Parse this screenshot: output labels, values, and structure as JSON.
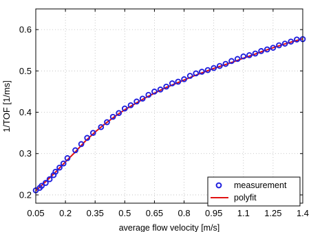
{
  "chart_data": {
    "type": "scatter",
    "title": "",
    "xlabel": "average flow velocity [m/s]",
    "ylabel": "1/TOF [1/ms]",
    "xlim": [
      0.05,
      1.4
    ],
    "ylim": [
      0.18,
      0.65
    ],
    "xticks": [
      0.05,
      0.2,
      0.35,
      0.5,
      0.65,
      0.8,
      0.95,
      1.1,
      1.25,
      1.4
    ],
    "xtick_labels": [
      "0.05",
      "0.2",
      "0.35",
      "0.5",
      "0.65",
      "0.8",
      "0.95",
      "1.1",
      "1.25",
      "1.4"
    ],
    "yticks": [
      0.2,
      0.3,
      0.4,
      0.5,
      0.6
    ],
    "ytick_labels": [
      "0.2",
      "0.3",
      "0.4",
      "0.5",
      "0.6"
    ],
    "grid": true,
    "legend_position": "bottom-right",
    "colors": {
      "measurement": "#1f1fdd",
      "polyfit": "#e01010"
    },
    "series": [
      {
        "name": "measurement",
        "style": "markers",
        "points": [
          [
            0.05,
            0.211
          ],
          [
            0.07,
            0.217
          ],
          [
            0.08,
            0.222
          ],
          [
            0.1,
            0.229
          ],
          [
            0.12,
            0.238
          ],
          [
            0.14,
            0.248
          ],
          [
            0.15,
            0.256
          ],
          [
            0.17,
            0.266
          ],
          [
            0.19,
            0.276
          ],
          [
            0.21,
            0.289
          ],
          [
            0.25,
            0.308
          ],
          [
            0.28,
            0.323
          ],
          [
            0.31,
            0.338
          ],
          [
            0.34,
            0.35
          ],
          [
            0.38,
            0.364
          ],
          [
            0.41,
            0.376
          ],
          [
            0.44,
            0.389
          ],
          [
            0.47,
            0.398
          ],
          [
            0.5,
            0.409
          ],
          [
            0.53,
            0.417
          ],
          [
            0.56,
            0.426
          ],
          [
            0.59,
            0.433
          ],
          [
            0.62,
            0.442
          ],
          [
            0.65,
            0.45
          ],
          [
            0.68,
            0.455
          ],
          [
            0.71,
            0.462
          ],
          [
            0.74,
            0.47
          ],
          [
            0.77,
            0.474
          ],
          [
            0.8,
            0.48
          ],
          [
            0.83,
            0.488
          ],
          [
            0.86,
            0.494
          ],
          [
            0.89,
            0.498
          ],
          [
            0.92,
            0.502
          ],
          [
            0.95,
            0.507
          ],
          [
            0.98,
            0.512
          ],
          [
            1.01,
            0.517
          ],
          [
            1.04,
            0.524
          ],
          [
            1.07,
            0.529
          ],
          [
            1.1,
            0.535
          ],
          [
            1.13,
            0.538
          ],
          [
            1.16,
            0.542
          ],
          [
            1.19,
            0.548
          ],
          [
            1.22,
            0.552
          ],
          [
            1.25,
            0.556
          ],
          [
            1.28,
            0.562
          ],
          [
            1.31,
            0.566
          ],
          [
            1.34,
            0.571
          ],
          [
            1.37,
            0.576
          ],
          [
            1.4,
            0.577
          ]
        ]
      },
      {
        "name": "polyfit",
        "style": "line",
        "points": [
          [
            0.05,
            0.21
          ],
          [
            0.1,
            0.232
          ],
          [
            0.15,
            0.255
          ],
          [
            0.2,
            0.28
          ],
          [
            0.25,
            0.304
          ],
          [
            0.3,
            0.33
          ],
          [
            0.35,
            0.352
          ],
          [
            0.4,
            0.372
          ],
          [
            0.45,
            0.39
          ],
          [
            0.5,
            0.406
          ],
          [
            0.55,
            0.42
          ],
          [
            0.6,
            0.434
          ],
          [
            0.65,
            0.446
          ],
          [
            0.7,
            0.458
          ],
          [
            0.75,
            0.468
          ],
          [
            0.8,
            0.478
          ],
          [
            0.85,
            0.488
          ],
          [
            0.9,
            0.497
          ],
          [
            0.95,
            0.506
          ],
          [
            1.0,
            0.514
          ],
          [
            1.05,
            0.522
          ],
          [
            1.1,
            0.531
          ],
          [
            1.15,
            0.539
          ],
          [
            1.2,
            0.548
          ],
          [
            1.25,
            0.556
          ],
          [
            1.3,
            0.564
          ],
          [
            1.35,
            0.571
          ],
          [
            1.4,
            0.578
          ]
        ]
      }
    ]
  }
}
